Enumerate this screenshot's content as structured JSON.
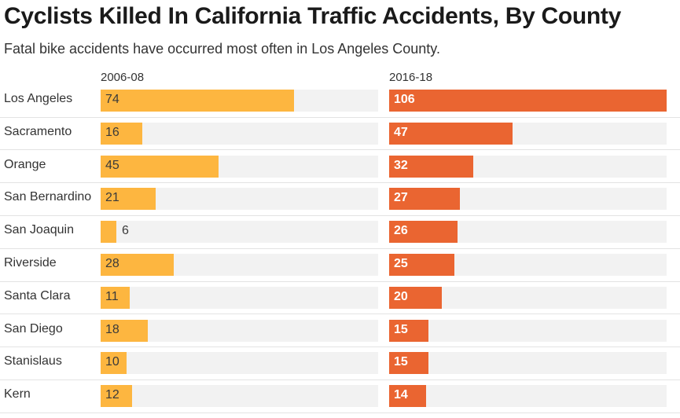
{
  "title": "Cyclists Killed In California Traffic Accidents, By County",
  "subtitle": "Fatal bike accidents have occurred most often in Los Angeles County.",
  "colors": {
    "period1": "#FDB640",
    "period2": "#EA6531",
    "track": "#F2F2F2"
  },
  "chart_data": {
    "type": "bar",
    "orientation": "horizontal",
    "categories": [
      "Los Angeles",
      "Sacramento",
      "Orange",
      "San Bernardino",
      "San Joaquin",
      "Riverside",
      "Santa Clara",
      "San Diego",
      "Stanislaus",
      "Kern"
    ],
    "series": [
      {
        "name": "2006-08",
        "values": [
          74,
          16,
          45,
          21,
          6,
          28,
          11,
          18,
          10,
          12
        ]
      },
      {
        "name": "2016-18",
        "values": [
          106,
          47,
          32,
          27,
          26,
          25,
          20,
          15,
          15,
          14
        ]
      }
    ],
    "xlim": [
      0,
      106
    ]
  }
}
